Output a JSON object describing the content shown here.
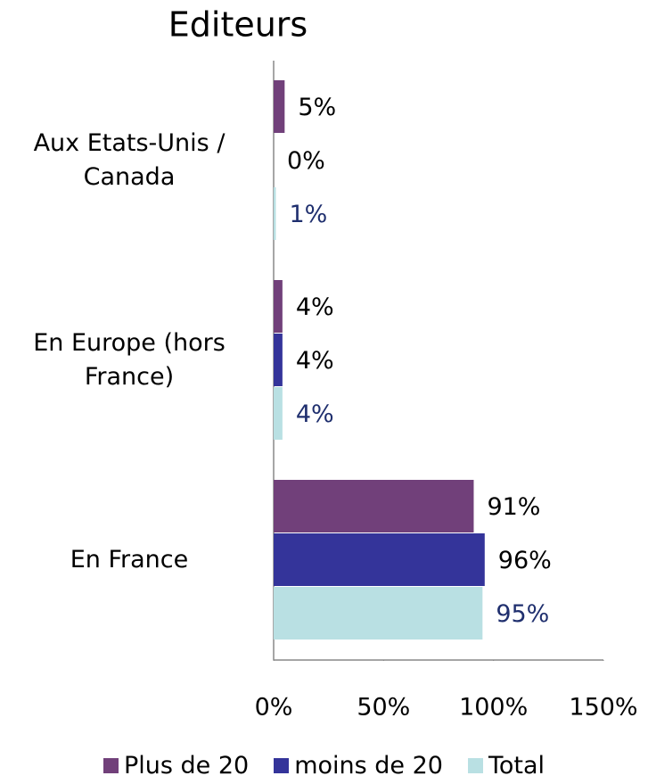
{
  "chart_data": {
    "type": "hbar",
    "title": "Editeurs",
    "categories": [
      "Aux Etats-Unis / Canada",
      "En Europe (hors France)",
      "En France"
    ],
    "series": [
      {
        "name": "Plus de 20",
        "color": "#71407a",
        "label_color": "#000000",
        "values": [
          5,
          4,
          91
        ],
        "value_labels": [
          "5%",
          "4%",
          "91%"
        ]
      },
      {
        "name": "moins de 20",
        "color": "#34349a",
        "label_color": "#000000",
        "values": [
          0,
          4,
          96
        ],
        "value_labels": [
          "0%",
          "4%",
          "96%"
        ]
      },
      {
        "name": "Total",
        "color": "#b9e0e3",
        "label_color": "#1f2f6e",
        "values": [
          1,
          4,
          95
        ],
        "value_labels": [
          "1%",
          "4%",
          "95%"
        ]
      }
    ],
    "xlim": [
      0,
      150
    ],
    "xticks": [
      {
        "value": 0,
        "label": "0%"
      },
      {
        "value": 50,
        "label": "50%"
      },
      {
        "value": 100,
        "label": "100%"
      },
      {
        "value": 150,
        "label": "150%"
      }
    ],
    "legend": "bottom"
  }
}
